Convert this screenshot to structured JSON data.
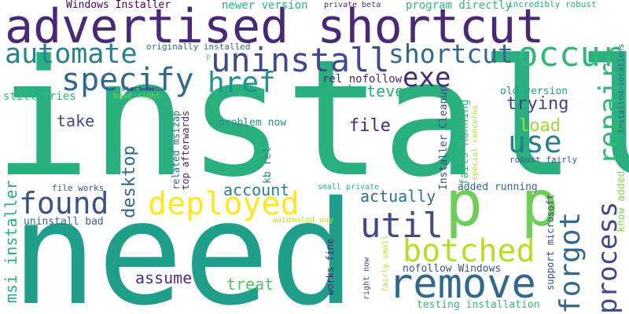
{
  "words": [
    {
      "text": "install",
      "color": "#2ab07f"
    },
    {
      "text": "need",
      "color": "#1f9e89"
    },
    {
      "text": "advertised shortcut",
      "color": "#482878"
    },
    {
      "text": "uninstall",
      "color": "#3e4a89"
    },
    {
      "text": "automate",
      "color": "#26828e"
    },
    {
      "text": "shortcut",
      "color": "#31688e"
    },
    {
      "text": "occur",
      "color": "#35b779"
    },
    {
      "text": "specify",
      "color": "#31688e"
    },
    {
      "text": "href",
      "color": "#21918c"
    },
    {
      "text": "exe",
      "color": "#482878"
    },
    {
      "text": "p p",
      "color": "#6ece58"
    },
    {
      "text": "repair",
      "color": "#35b779"
    },
    {
      "text": "remove",
      "color": "#31688e"
    },
    {
      "text": "botched",
      "color": "#b5de2b"
    },
    {
      "text": "forgot",
      "color": "#31688e"
    },
    {
      "text": "process",
      "color": "#3e4a89"
    },
    {
      "text": "deployed",
      "color": "#fde725"
    },
    {
      "text": "found",
      "color": "#3b528b"
    },
    {
      "text": "util",
      "color": "#3e4a89"
    },
    {
      "text": "use",
      "color": "#26828e"
    },
    {
      "text": "file",
      "color": "#482878"
    },
    {
      "text": "load",
      "color": "#a0da39"
    },
    {
      "text": "trying",
      "color": "#414487"
    },
    {
      "text": "take",
      "color": "#3e4a89"
    },
    {
      "text": "whatever",
      "color": "#2ab07f"
    },
    {
      "text": "desktop",
      "color": "#31688e"
    },
    {
      "text": "account",
      "color": "#26828e"
    },
    {
      "text": "actually",
      "color": "#2c728e"
    },
    {
      "text": "msi installer",
      "color": "#2ab07f"
    },
    {
      "text": "assume",
      "color": "#46327e"
    },
    {
      "text": "treat",
      "color": "#52c569"
    },
    {
      "text": "Windows Installer",
      "color": "#440154"
    },
    {
      "text": "newer version",
      "color": "#2ab07f"
    },
    {
      "text": "private beta",
      "color": "#482878"
    },
    {
      "text": "program directly",
      "color": "#35b779"
    },
    {
      "text": "incredibly robust",
      "color": "#2ab07f"
    },
    {
      "text": "originally installed",
      "color": "#31688e"
    },
    {
      "text": "start menu",
      "color": "#3e4a89"
    },
    {
      "text": "base right",
      "color": "#7ad151"
    },
    {
      "text": "still tries",
      "color": "#35b779"
    },
    {
      "text": "rel nofollow",
      "color": "#482878"
    },
    {
      "text": "problem now",
      "color": "#21918c"
    },
    {
      "text": "old version",
      "color": "#1f9e89"
    },
    {
      "text": "robust fairly",
      "color": "#3b528b"
    },
    {
      "text": "Installer Cleanup",
      "color": "#3e4a89"
    },
    {
      "text": "fails Running",
      "color": "#35b779"
    },
    {
      "text": "special concerns",
      "color": "#b5de2b"
    },
    {
      "text": "installed locations",
      "color": "#31688e"
    },
    {
      "text": "related msizap",
      "color": "#31688e"
    },
    {
      "text": "top afterwards",
      "color": "#482878"
    },
    {
      "text": "kb rel",
      "color": "#26828e"
    },
    {
      "text": "file works",
      "color": "#3b528b"
    },
    {
      "text": "uninstall bad",
      "color": "#31688e"
    },
    {
      "text": "small private",
      "color": "#2ab07f"
    },
    {
      "text": "added running",
      "color": "#31688e"
    },
    {
      "text": "support microsoft",
      "color": "#3e4a89"
    },
    {
      "text": "know added",
      "color": "#8fd744"
    },
    {
      "text": "automated way",
      "color": "#c8e020"
    },
    {
      "text": "works fine",
      "color": "#482878"
    },
    {
      "text": "right now",
      "color": "#3e4a89"
    },
    {
      "text": "fairly small",
      "color": "#b5de2b"
    },
    {
      "text": "nofollow Windows",
      "color": "#3b528b"
    },
    {
      "text": "testing installation",
      "color": "#35b779"
    },
    {
      "text": "p",
      "color": "#6ece58"
    }
  ]
}
